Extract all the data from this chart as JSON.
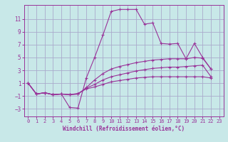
{
  "background_color": "#c8e8e8",
  "grid_color": "#aaaacc",
  "line_color": "#993399",
  "xlim": [
    -0.5,
    23.5
  ],
  "ylim": [
    -4.2,
    13.2
  ],
  "yticks": [
    -3,
    -1,
    1,
    3,
    5,
    7,
    9,
    11
  ],
  "xticks": [
    0,
    1,
    2,
    3,
    4,
    5,
    6,
    7,
    8,
    9,
    10,
    11,
    12,
    13,
    14,
    15,
    16,
    17,
    18,
    19,
    20,
    21,
    22,
    23
  ],
  "xlabel": "Windchill (Refroidissement éolien,°C)",
  "series": [
    {
      "x": [
        0,
        1,
        2,
        3,
        4,
        5,
        6,
        7,
        8,
        9,
        10,
        11,
        12,
        13,
        14,
        15,
        16,
        17,
        18,
        19,
        20,
        21,
        22
      ],
      "y": [
        1.0,
        -0.7,
        -0.5,
        -0.8,
        -0.7,
        -2.8,
        -2.9,
        1.8,
        5.0,
        8.5,
        12.2,
        12.5,
        12.5,
        12.5,
        10.2,
        10.4,
        7.2,
        7.1,
        7.2,
        4.8,
        7.2,
        5.0,
        3.2
      ]
    },
    {
      "x": [
        0,
        1,
        2,
        3,
        4,
        5,
        6,
        7,
        8,
        9,
        10,
        11,
        12,
        13,
        14,
        15,
        16,
        17,
        18,
        19,
        20,
        21,
        22
      ],
      "y": [
        1.0,
        -0.7,
        -0.5,
        -0.8,
        -0.7,
        -0.8,
        -0.7,
        0.3,
        1.5,
        2.5,
        3.2,
        3.6,
        3.9,
        4.2,
        4.4,
        4.6,
        4.7,
        4.8,
        4.8,
        4.8,
        5.0,
        4.9,
        3.2
      ]
    },
    {
      "x": [
        0,
        1,
        2,
        3,
        4,
        5,
        6,
        7,
        8,
        9,
        10,
        11,
        12,
        13,
        14,
        15,
        16,
        17,
        18,
        19,
        20,
        21,
        22
      ],
      "y": [
        1.0,
        -0.7,
        -0.5,
        -0.8,
        -0.7,
        -0.8,
        -0.7,
        0.2,
        0.8,
        1.5,
        2.0,
        2.3,
        2.6,
        2.9,
        3.1,
        3.3,
        3.4,
        3.5,
        3.5,
        3.6,
        3.7,
        3.8,
        2.0
      ]
    },
    {
      "x": [
        0,
        1,
        2,
        3,
        4,
        5,
        6,
        7,
        8,
        9,
        10,
        11,
        12,
        13,
        14,
        15,
        16,
        17,
        18,
        19,
        20,
        21,
        22
      ],
      "y": [
        1.0,
        -0.7,
        -0.5,
        -0.8,
        -0.7,
        -0.8,
        -0.6,
        0.1,
        0.4,
        0.8,
        1.2,
        1.4,
        1.6,
        1.8,
        1.9,
        2.0,
        2.0,
        2.0,
        2.0,
        2.0,
        2.0,
        2.0,
        1.8
      ]
    }
  ]
}
